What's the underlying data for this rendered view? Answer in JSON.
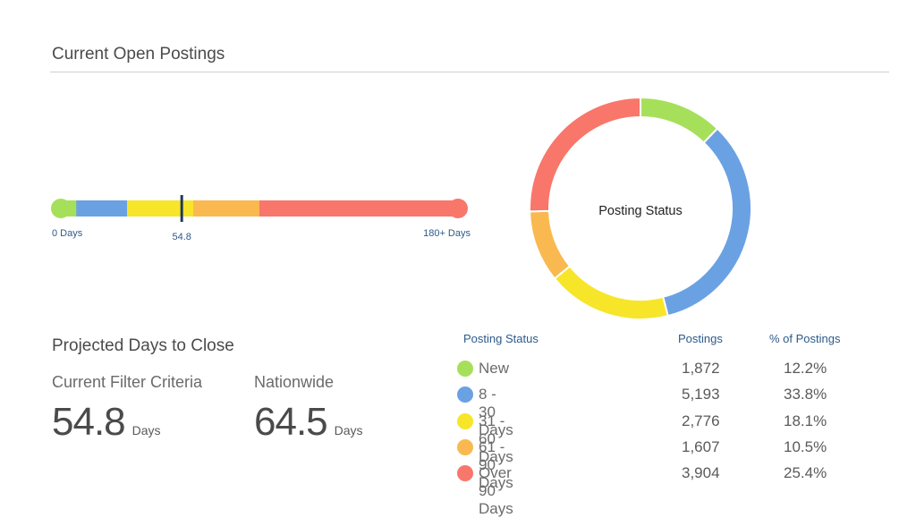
{
  "header": {
    "title": "Current Open Postings"
  },
  "timeline": {
    "start_label": "0 Days",
    "end_label": "180+ Days",
    "marker_label": "54.8",
    "marker_value": 54.8,
    "max_value": 180,
    "segments": [
      {
        "from": 0,
        "to": 7,
        "color": "#a6e05a"
      },
      {
        "from": 7,
        "to": 30,
        "color": "#6aa1e3"
      },
      {
        "from": 30,
        "to": 60,
        "color": "#f7e52a"
      },
      {
        "from": 60,
        "to": 90,
        "color": "#f9b950"
      },
      {
        "from": 90,
        "to": 180,
        "color": "#f8776a"
      }
    ],
    "marker_color": "#1f3b5c"
  },
  "donut": {
    "center_label": "Posting Status"
  },
  "projected": {
    "title": "Projected Days to Close",
    "current_label": "Current Filter Criteria",
    "current_value": "54.8",
    "nationwide_label": "Nationwide",
    "nationwide_value": "64.5",
    "unit": "Days"
  },
  "status_table": {
    "headers": {
      "status": "Posting Status",
      "postings": "Postings",
      "pct": "% of Postings"
    },
    "rows": [
      {
        "label": "New",
        "postings": "1,872",
        "pct": "12.2%",
        "color": "#a6e05a"
      },
      {
        "label": "8 - 30 Days",
        "postings": "5,193",
        "pct": "33.8%",
        "color": "#6aa1e3"
      },
      {
        "label": "31 - 60 Days",
        "postings": "2,776",
        "pct": "18.1%",
        "color": "#f7e52a"
      },
      {
        "label": "61 - 90 Days",
        "postings": "1,607",
        "pct": "10.5%",
        "color": "#f9b950"
      },
      {
        "label": "Over 90 Days",
        "postings": "3,904",
        "pct": "25.4%",
        "color": "#f8776a"
      }
    ]
  },
  "chart_data": {
    "type": "pie",
    "title": "Posting Status",
    "categories": [
      "New",
      "8 - 30 Days",
      "31 - 60 Days",
      "61 - 90 Days",
      "Over 90 Days"
    ],
    "values": [
      1872,
      5193,
      2776,
      1607,
      3904
    ],
    "percentages": [
      12.2,
      33.8,
      18.1,
      10.5,
      25.4
    ],
    "colors": [
      "#a6e05a",
      "#6aa1e3",
      "#f7e52a",
      "#f9b950",
      "#f8776a"
    ]
  }
}
